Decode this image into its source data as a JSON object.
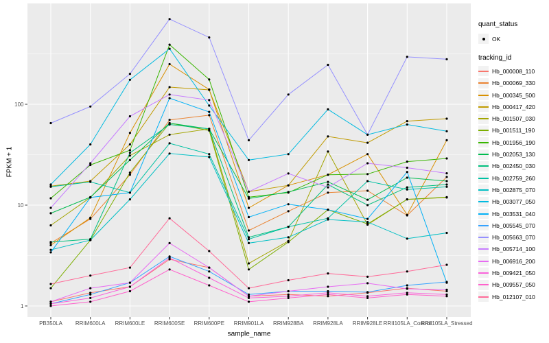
{
  "figure": {
    "panel_background": "#EBEBEB",
    "grid_color": "#FFFFFF",
    "point_color": "#000000",
    "axis_text_color": "#4D4D4D",
    "tick_mark_color": "#333333",
    "legend_key_fill": "#F2F2F2"
  },
  "chart_data": {
    "type": "line",
    "title": "",
    "xlabel": "sample_name",
    "ylabel": "FPKM + 1",
    "y_scale": "log10",
    "y_ticks": [
      1,
      10,
      100
    ],
    "y_tick_labels": [
      "1",
      "10",
      "100"
    ],
    "y_minor_gridlines": [
      3.162,
      31.62,
      316.2
    ],
    "ylim": [
      0.73,
      980
    ],
    "grid": true,
    "legend_position": "right",
    "categories": [
      "PB350LA",
      "RRIM600LA",
      "RRIM600LE",
      "RRIM600SE",
      "RRIM600PE",
      "RRIM901LA",
      "RRIM928BA",
      "RRIM928LA",
      "RRIM928LE",
      "RRII105LA_Control",
      "RRII105LA_Stressed"
    ],
    "legend": {
      "quant_status_title": "quant_status",
      "quant_status_items": [
        {
          "label": "OK",
          "symbol": "point"
        }
      ],
      "tracking_id_title": "tracking_id"
    },
    "series": [
      {
        "name": "Hb_000008_110",
        "color": "#F8766D",
        "values": [
          1.1,
          1.35,
          1.55,
          2.9,
          2.4,
          1.25,
          1.3,
          1.25,
          1.35,
          1.5,
          1.4
        ]
      },
      {
        "name": "Hb_000069_330",
        "color": "#EA8331",
        "values": [
          4.2,
          7.3,
          20,
          70,
          78,
          5.6,
          8.7,
          13.3,
          13.9,
          7.9,
          19
        ]
      },
      {
        "name": "Hb_000345_500",
        "color": "#D89000",
        "values": [
          4.0,
          7.5,
          52,
          250,
          140,
          9.4,
          15.7,
          20,
          32,
          8.0,
          44
        ]
      },
      {
        "name": "Hb_000417_420",
        "color": "#C09B00",
        "values": [
          15.4,
          17.3,
          40,
          148,
          139,
          13.6,
          15.7,
          48,
          41.5,
          68,
          72
        ]
      },
      {
        "name": "Hb_001507_030",
        "color": "#A3A500",
        "values": [
          6.3,
          11.9,
          31,
          50,
          57,
          2.64,
          4.4,
          34,
          6.4,
          11.4,
          11.9
        ]
      },
      {
        "name": "Hb_001511_190",
        "color": "#7CAE00",
        "values": [
          1.5,
          4.5,
          21,
          65,
          55,
          2.3,
          4.3,
          9.0,
          6.5,
          11.4,
          12
        ]
      },
      {
        "name": "Hb_001956_190",
        "color": "#39B600",
        "values": [
          11.7,
          25,
          35,
          390,
          176,
          12,
          13.3,
          20,
          20.3,
          27,
          29
        ]
      },
      {
        "name": "Hb_002053_130",
        "color": "#00BB4E",
        "values": [
          8.3,
          12,
          28,
          65,
          57,
          11.6,
          13.5,
          17,
          11.3,
          18.7,
          17.3
        ]
      },
      {
        "name": "Hb_002450_030",
        "color": "#00BF7D",
        "values": [
          4.3,
          4.6,
          33,
          63,
          57,
          4.8,
          6.1,
          16,
          10,
          15,
          16
        ]
      },
      {
        "name": "Hb_002759_260",
        "color": "#00C1A3",
        "values": [
          15.2,
          17,
          13.3,
          41,
          32,
          4.6,
          6.1,
          7.4,
          17.3,
          14.3,
          15.2
        ]
      },
      {
        "name": "Hb_002875_070",
        "color": "#00BFC4",
        "values": [
          3.6,
          4.5,
          11.4,
          32.5,
          30,
          4.2,
          4.8,
          7.2,
          6.8,
          4.65,
          5.3
        ]
      },
      {
        "name": "Hb_003077_050",
        "color": "#00BAE0",
        "values": [
          16,
          40,
          175,
          355,
          97,
          28,
          32,
          89,
          50,
          63,
          54
        ]
      },
      {
        "name": "Hb_003531_040",
        "color": "#00B0F6",
        "values": [
          3.4,
          11.9,
          13.3,
          115,
          84,
          7.6,
          10.2,
          9.0,
          7.3,
          21.3,
          1.7
        ]
      },
      {
        "name": "Hb_005545_070",
        "color": "#35A2FF",
        "values": [
          1.05,
          1.3,
          1.7,
          3.1,
          2.2,
          1.3,
          1.4,
          1.4,
          1.37,
          1.6,
          1.73
        ]
      },
      {
        "name": "Hb_005663_070",
        "color": "#9590FF",
        "values": [
          65,
          95,
          200,
          700,
          460,
          44,
          125,
          246,
          50,
          295,
          280
        ]
      },
      {
        "name": "Hb_005714_100",
        "color": "#C77CFF",
        "values": [
          9.4,
          26,
          76,
          125,
          110,
          13.6,
          20.6,
          15,
          26,
          23.5,
          20.7
        ]
      },
      {
        "name": "Hb_006916_200",
        "color": "#E76BF3",
        "values": [
          1.1,
          1.5,
          1.7,
          4.2,
          2.4,
          1.25,
          1.4,
          1.55,
          1.68,
          1.48,
          1.45
        ]
      },
      {
        "name": "Hb_009421_050",
        "color": "#FA62DB",
        "values": [
          1.05,
          1.2,
          1.55,
          3.0,
          1.9,
          1.2,
          1.25,
          1.35,
          1.25,
          1.35,
          1.3
        ]
      },
      {
        "name": "Hb_009557_050",
        "color": "#FF61CC",
        "values": [
          1.0,
          1.1,
          1.4,
          2.3,
          1.6,
          1.1,
          1.2,
          1.3,
          1.2,
          1.3,
          1.25
        ]
      },
      {
        "name": "Hb_012107_010",
        "color": "#FF6A98",
        "values": [
          1.65,
          2.0,
          2.4,
          7.4,
          3.5,
          1.5,
          1.8,
          2.1,
          1.95,
          2.2,
          2.56
        ]
      }
    ]
  }
}
